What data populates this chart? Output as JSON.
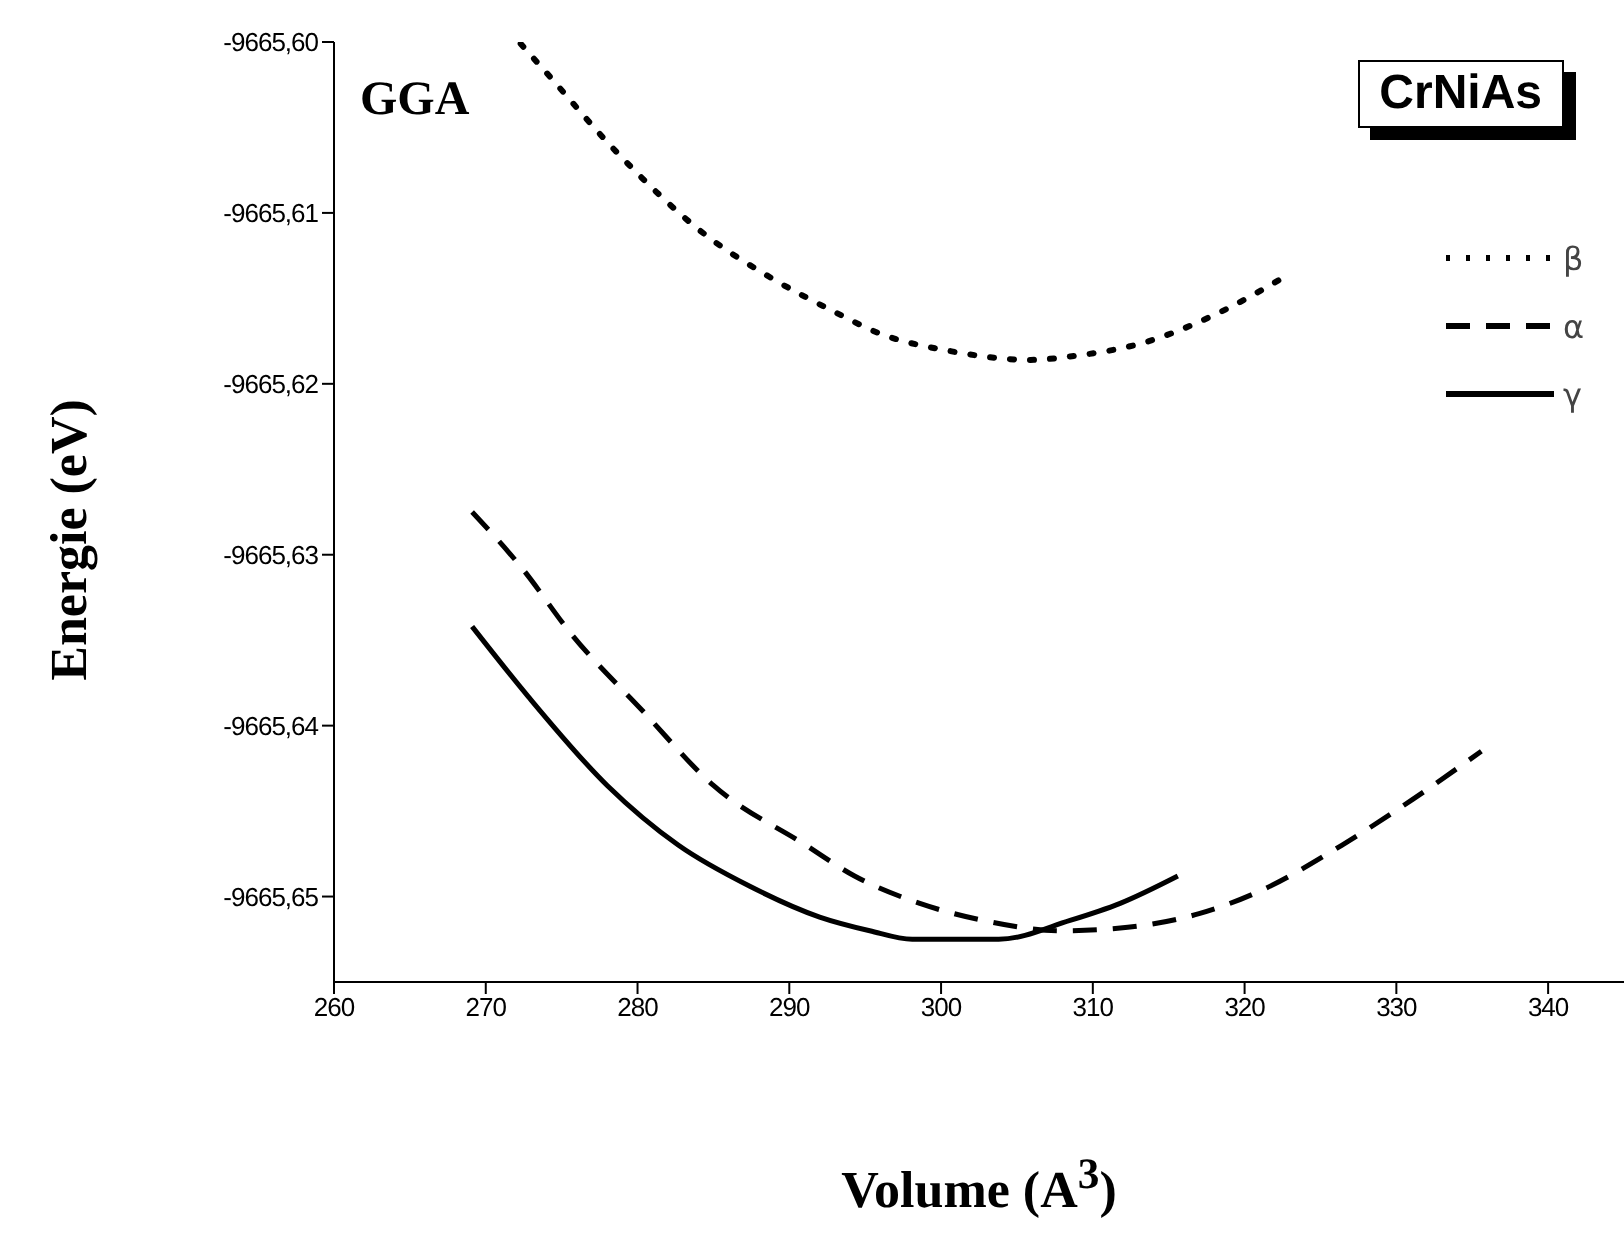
{
  "chart_data": {
    "type": "line",
    "xlabel": "Volume (A$^{3}$)",
    "ylabel": "Energie (eV)",
    "annotations": [
      "GGA",
      "CrNiAs"
    ],
    "xlim": [
      260,
      345
    ],
    "xticks": [
      260,
      270,
      280,
      290,
      300,
      310,
      320,
      330,
      340
    ],
    "ylim": [
      -9665.655,
      -9665.6
    ],
    "yticks": [
      {
        "value": -9665.6,
        "label": "-9665,60"
      },
      {
        "value": -9665.61,
        "label": "-9665,61"
      },
      {
        "value": -9665.62,
        "label": "-9665,62"
      },
      {
        "value": -9665.63,
        "label": "-9665,63"
      },
      {
        "value": -9665.64,
        "label": "-9665,64"
      },
      {
        "value": -9665.65,
        "label": "-9665,65"
      }
    ],
    "legend": "top right",
    "series": [
      {
        "name": "β",
        "color": "#000000",
        "line_style": "dotted",
        "x": [
          272.3,
          273.8,
          278.9,
          284.5,
          288.8,
          293,
          295.8,
          300.7,
          305.9,
          308.5,
          313.7,
          318.4,
          322.9
        ],
        "values": [
          -9665.6001,
          -9665.6016,
          -9665.6067,
          -9665.6113,
          -9665.6138,
          -9665.6158,
          -9665.617,
          -9665.6181,
          -9665.6186,
          -9665.6184,
          -9665.6175,
          -9665.6158,
          -9665.6136
        ]
      },
      {
        "name": "α",
        "color": "#000000",
        "line_style": "dashed",
        "x": [
          269.1,
          272.4,
          275.6,
          280.3,
          285,
          291.1,
          294.3,
          298.6,
          302.8,
          308,
          312.3,
          317,
          321.2,
          326.4,
          331.1,
          335.6
        ],
        "values": [
          -9665.6275,
          -9665.6308,
          -9665.6346,
          -9665.6391,
          -9665.6435,
          -9665.647,
          -9665.6488,
          -9665.6504,
          -9665.6514,
          -9665.652,
          -9665.6518,
          -9665.651,
          -9665.6496,
          -9665.647,
          -9665.6443,
          -9665.6415
        ]
      },
      {
        "name": "γ",
        "color": "#000000",
        "line_style": "solid",
        "x": [
          269.1,
          272.8,
          278,
          282.7,
          287.4,
          292,
          295.3,
          298.1,
          303.8,
          308.5,
          311.8,
          315.6
        ],
        "values": [
          -9665.6342,
          -9665.6383,
          -9665.6435,
          -9665.647,
          -9665.6494,
          -9665.6512,
          -9665.652,
          -9665.6525,
          -9665.6525,
          -9665.6514,
          -9665.6504,
          -9665.6488
        ]
      }
    ]
  }
}
